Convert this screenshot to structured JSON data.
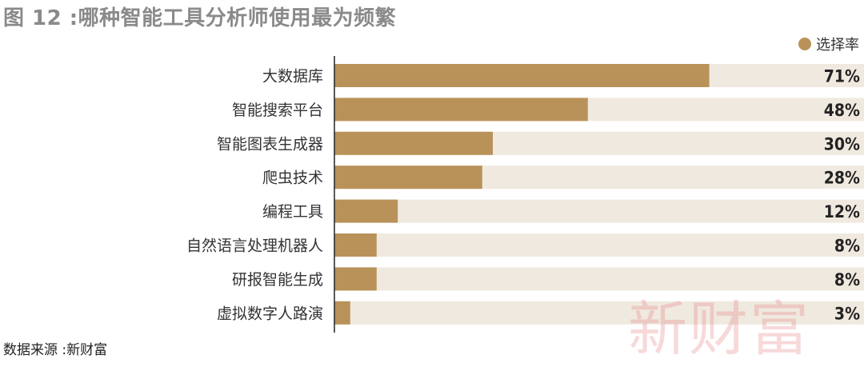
{
  "title": "图 12 :哪种智能工具分析师使用最为频繁",
  "legend": {
    "label": "选择率"
  },
  "source": "数据来源 :新财富",
  "watermark": "新财富",
  "colors": {
    "bar": "#b99259",
    "track": "#f0e9df",
    "axis": "#222222"
  },
  "chart_data": {
    "type": "bar",
    "orientation": "horizontal",
    "title": "图 12 :哪种智能工具分析师使用最为频繁",
    "categories": [
      "大数据库",
      "智能搜索平台",
      "智能图表生成器",
      "爬虫技术",
      "编程工具",
      "自然语言处理机器人",
      "研报智能生成",
      "虚拟数字人路演"
    ],
    "series": [
      {
        "name": "选择率",
        "values": [
          71,
          48,
          30,
          28,
          12,
          8,
          8,
          3
        ]
      }
    ],
    "value_labels": [
      "71%",
      "48%",
      "30%",
      "28%",
      "12%",
      "8%",
      "8%",
      "3%"
    ],
    "xlim": [
      0,
      100
    ],
    "unit": "%",
    "legend_position": "top-right",
    "grid": false
  }
}
